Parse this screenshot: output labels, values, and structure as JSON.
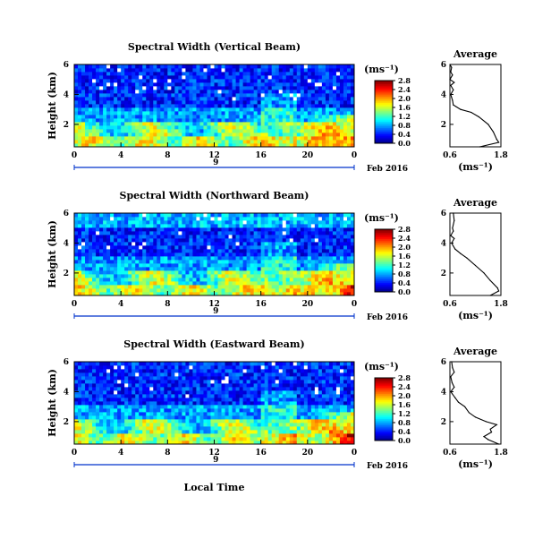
{
  "figure": {
    "date_label": "Feb 2016",
    "x_axis_label": "Local Time",
    "day_label": "9",
    "colorbar_unit": "(ms⁻¹)",
    "avg_title": "Average",
    "avg_xlabel": "(ms⁻¹)",
    "height_label": "Height (km)"
  },
  "chart_data": [
    {
      "type": "heatmap",
      "title": "Spectral Width (Vertical Beam)",
      "xlabel": "",
      "ylabel": "Height (km)",
      "x_ticks": [
        "0",
        "4",
        "8",
        "12",
        "16",
        "20",
        "0"
      ],
      "y_ticks": [
        "2",
        "4",
        "6"
      ],
      "xlim": [
        0,
        24
      ],
      "ylim": [
        0.5,
        6
      ],
      "colorbar": {
        "ticks": [
          "0.0",
          "0.4",
          "0.8",
          "1.2",
          "1.6",
          "2.0",
          "2.4",
          "2.8"
        ],
        "range": [
          0,
          2.8
        ],
        "unit": "(ms⁻¹)"
      },
      "pattern": "high widths (1.2-2.8) below ~2 km, low widths (0.2-0.8) aloft; strongest values after 20 LT below 2.5 km",
      "average_profile": {
        "title": "Average",
        "xlabel": "(ms⁻¹)",
        "x_ticks": [
          "0.6",
          "1.8"
        ],
        "y_ticks": [
          "2",
          "4",
          "6"
        ],
        "xlim": [
          0.6,
          1.8
        ],
        "ylim": [
          0.5,
          6
        ],
        "height_km": [
          0.5,
          0.8,
          1.0,
          1.5,
          2.0,
          2.5,
          2.8,
          3.0,
          3.3,
          3.6,
          3.8,
          4.0,
          4.3,
          4.6,
          4.8,
          5.0,
          5.3,
          5.5,
          5.8,
          6.0
        ],
        "width": [
          1.3,
          1.75,
          1.7,
          1.62,
          1.5,
          1.28,
          1.1,
          0.85,
          0.68,
          0.66,
          0.64,
          0.62,
          0.68,
          0.62,
          0.7,
          0.6,
          0.66,
          0.62,
          0.64,
          0.6
        ]
      }
    },
    {
      "type": "heatmap",
      "title": "Spectral Width (Northward Beam)",
      "xlabel": "",
      "ylabel": "Height (km)",
      "x_ticks": [
        "0",
        "4",
        "8",
        "12",
        "16",
        "20",
        "0"
      ],
      "y_ticks": [
        "2",
        "4",
        "6"
      ],
      "xlim": [
        0,
        24
      ],
      "ylim": [
        0.5,
        6
      ],
      "colorbar": {
        "ticks": [
          "0.0",
          "0.4",
          "0.8",
          "1.2",
          "1.6",
          "2.0",
          "2.4",
          "2.8"
        ],
        "range": [
          0,
          2.8
        ],
        "unit": "(ms⁻¹)"
      },
      "pattern": "high widths below ~2 km, light-blue band near 5-6 km, strongest values after 20 LT",
      "average_profile": {
        "title": "Average",
        "xlabel": "(ms⁻¹)",
        "x_ticks": [
          "0.6",
          "1.8"
        ],
        "y_ticks": [
          "2",
          "4",
          "6"
        ],
        "xlim": [
          0.6,
          1.8
        ],
        "ylim": [
          0.5,
          6
        ],
        "height_km": [
          0.5,
          0.8,
          1.0,
          1.5,
          2.0,
          2.5,
          3.0,
          3.3,
          3.6,
          4.0,
          4.3,
          4.5,
          4.8,
          5.0,
          5.5,
          6.0
        ],
        "width": [
          1.55,
          1.75,
          1.72,
          1.55,
          1.4,
          1.2,
          1.0,
          0.85,
          0.72,
          0.64,
          0.7,
          0.62,
          0.68,
          0.66,
          0.7,
          0.68
        ]
      }
    },
    {
      "type": "heatmap",
      "title": "Spectral Width (Eastward Beam)",
      "xlabel": "Local Time",
      "ylabel": "Height (km)",
      "x_ticks": [
        "0",
        "4",
        "8",
        "12",
        "16",
        "20",
        "0"
      ],
      "y_ticks": [
        "2",
        "4",
        "6"
      ],
      "xlim": [
        0,
        24
      ],
      "ylim": [
        0.5,
        6
      ],
      "colorbar": {
        "ticks": [
          "0.0",
          "0.4",
          "0.8",
          "1.2",
          "1.6",
          "2.0",
          "2.4",
          "2.8"
        ],
        "range": [
          0,
          2.8
        ],
        "unit": "(ms⁻¹)"
      },
      "pattern": "high widths below ~2 km, low aloft, strongest after 20 LT near 1.5-2.5 km",
      "average_profile": {
        "title": "Average",
        "xlabel": "(ms⁻¹)",
        "x_ticks": [
          "0.6",
          "1.8"
        ],
        "y_ticks": [
          "2",
          "4",
          "6"
        ],
        "xlim": [
          0.6,
          1.8
        ],
        "ylim": [
          0.5,
          6
        ],
        "height_km": [
          0.5,
          0.8,
          1.0,
          1.3,
          1.5,
          1.8,
          2.0,
          2.3,
          2.6,
          3.0,
          3.3,
          3.6,
          4.0,
          4.3,
          4.6,
          5.0,
          5.3,
          5.6,
          6.0
        ],
        "width": [
          1.75,
          1.5,
          1.4,
          1.58,
          1.55,
          1.7,
          1.45,
          1.2,
          1.05,
          0.95,
          0.8,
          0.72,
          0.62,
          0.7,
          0.65,
          0.62,
          0.7,
          0.66,
          0.64
        ]
      }
    }
  ]
}
